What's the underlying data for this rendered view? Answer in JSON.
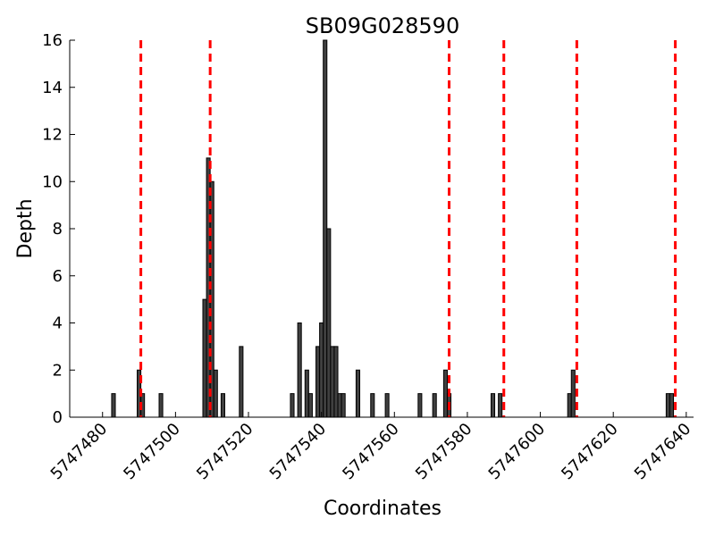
{
  "chart_data": {
    "type": "bar",
    "title": "SB09G028590",
    "xlabel": "Coordinates",
    "ylabel": "Depth",
    "xlim": [
      5747471,
      5747642
    ],
    "ylim": [
      0,
      16
    ],
    "x_ticks": [
      "5747480",
      "5747500",
      "5747520",
      "5747540",
      "5747560",
      "5747580",
      "5747600",
      "5747620",
      "5747640"
    ],
    "x_tick_values": [
      5747480,
      5747500,
      5747520,
      5747540,
      5747560,
      5747580,
      5747600,
      5747620,
      5747640
    ],
    "y_ticks": [
      "0",
      "2",
      "4",
      "6",
      "8",
      "10",
      "12",
      "14",
      "16"
    ],
    "y_tick_values": [
      0,
      2,
      4,
      6,
      8,
      10,
      12,
      14,
      16
    ],
    "bar_color": "#404040",
    "bar_edge_color": "#000000",
    "line_color": "#ff0000",
    "grid": false,
    "bars": [
      {
        "x": 5747483,
        "depth": 1
      },
      {
        "x": 5747490,
        "depth": 2
      },
      {
        "x": 5747491,
        "depth": 1
      },
      {
        "x": 5747496,
        "depth": 1
      },
      {
        "x": 5747508,
        "depth": 5
      },
      {
        "x": 5747509,
        "depth": 11
      },
      {
        "x": 5747510,
        "depth": 10
      },
      {
        "x": 5747511,
        "depth": 2
      },
      {
        "x": 5747513,
        "depth": 1
      },
      {
        "x": 5747518,
        "depth": 3
      },
      {
        "x": 5747532,
        "depth": 1
      },
      {
        "x": 5747534,
        "depth": 4
      },
      {
        "x": 5747536,
        "depth": 2
      },
      {
        "x": 5747537,
        "depth": 1
      },
      {
        "x": 5747539,
        "depth": 3
      },
      {
        "x": 5747540,
        "depth": 4
      },
      {
        "x": 5747541,
        "depth": 16
      },
      {
        "x": 5747542,
        "depth": 8
      },
      {
        "x": 5747543,
        "depth": 3
      },
      {
        "x": 5747544,
        "depth": 3
      },
      {
        "x": 5747545,
        "depth": 1
      },
      {
        "x": 5747546,
        "depth": 1
      },
      {
        "x": 5747550,
        "depth": 2
      },
      {
        "x": 5747554,
        "depth": 1
      },
      {
        "x": 5747558,
        "depth": 1
      },
      {
        "x": 5747567,
        "depth": 1
      },
      {
        "x": 5747571,
        "depth": 1
      },
      {
        "x": 5747574,
        "depth": 2
      },
      {
        "x": 5747575,
        "depth": 1
      },
      {
        "x": 5747587,
        "depth": 1
      },
      {
        "x": 5747589,
        "depth": 1
      },
      {
        "x": 5747608,
        "depth": 1
      },
      {
        "x": 5747609,
        "depth": 2
      },
      {
        "x": 5747635,
        "depth": 1
      },
      {
        "x": 5747636,
        "depth": 1
      }
    ],
    "vertical_lines": [
      5747490.5,
      5747509.5,
      5747575,
      5747590,
      5747610,
      5747637
    ]
  }
}
